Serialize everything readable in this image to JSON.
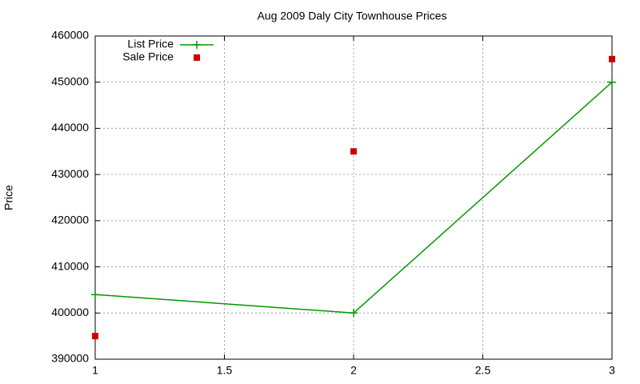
{
  "chart_data": {
    "type": "line",
    "title": "Aug 2009 Daly City Townhouse Prices",
    "y_label": "Price",
    "x": [
      1,
      2,
      3
    ],
    "series": [
      {
        "name": "List Price",
        "color": "#009900",
        "mode": "linespoints",
        "values": [
          404000,
          400000,
          450000
        ]
      },
      {
        "name": "Sale Price",
        "color": "#cc0000",
        "mode": "points",
        "values": [
          395000,
          435000,
          455000
        ]
      }
    ],
    "xlim": [
      1,
      3
    ],
    "xticks": [
      1,
      1.5,
      2,
      2.5,
      3
    ],
    "ylim": [
      390000,
      460000
    ],
    "yticks": [
      390000,
      400000,
      410000,
      420000,
      430000,
      440000,
      450000,
      460000
    ],
    "grid": true,
    "legend": "top-left"
  }
}
